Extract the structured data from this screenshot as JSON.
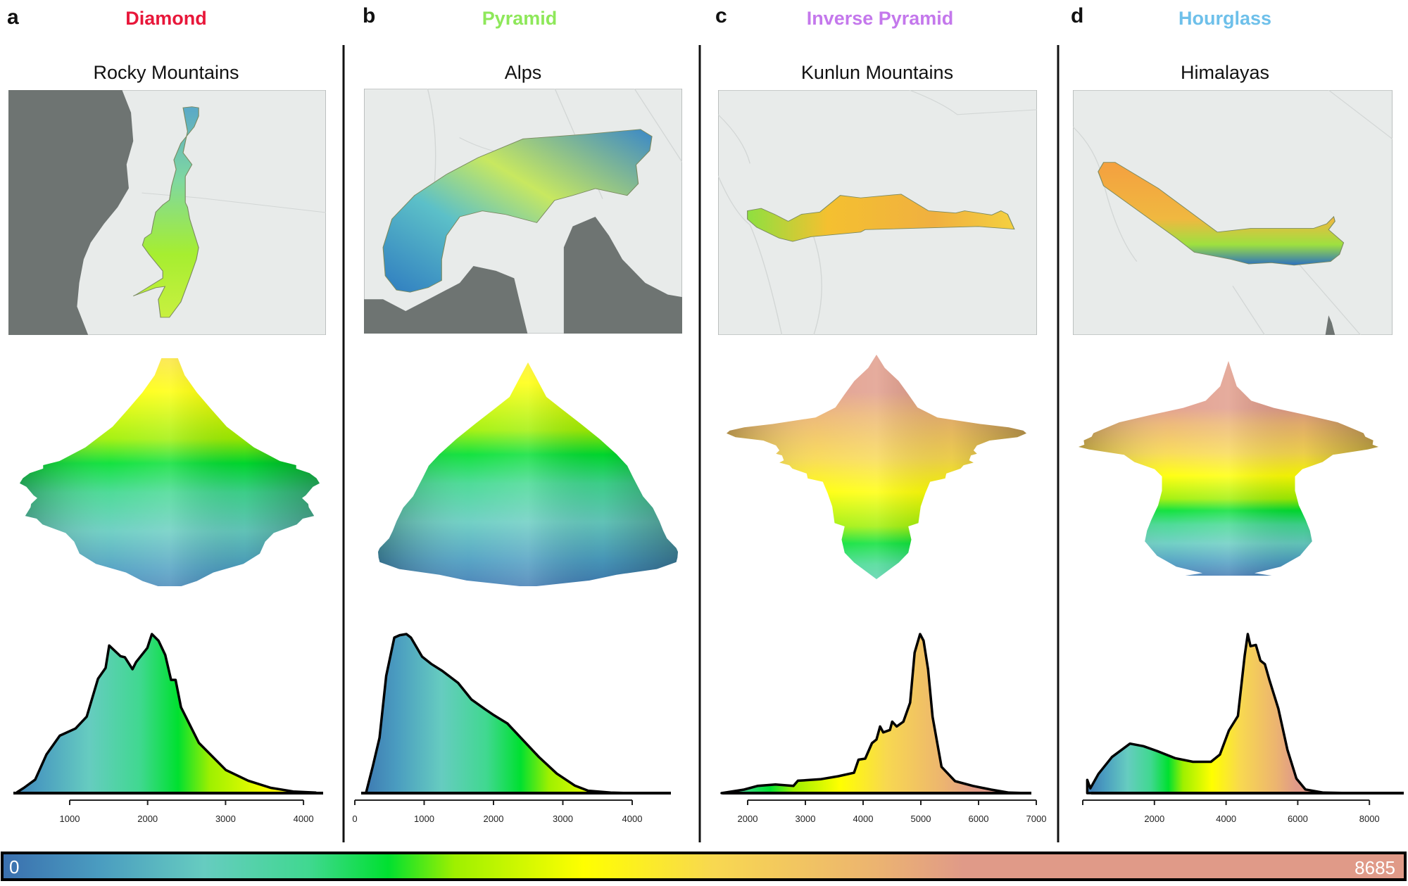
{
  "panels": [
    {
      "letter": "a",
      "shape": "Diamond",
      "shape_color": "#e8173a",
      "region": "Rocky Mountains"
    },
    {
      "letter": "b",
      "shape": "Pyramid",
      "shape_color": "#8ee85a",
      "region": "Alps"
    },
    {
      "letter": "c",
      "shape": "Inverse Pyramid",
      "shape_color": "#c478ec",
      "region": "Kunlun Mountains"
    },
    {
      "letter": "d",
      "shape": "Hourglass",
      "shape_color": "#6ec0ea",
      "region": "Himalayas"
    }
  ],
  "colorbar": {
    "min_label": "0",
    "max_label": "8685",
    "stops": [
      {
        "value": 0,
        "color": "#3a6fae"
      },
      {
        "value": 600,
        "color": "#4a9cc0"
      },
      {
        "value": 1250,
        "color": "#66ccc0"
      },
      {
        "value": 1900,
        "color": "#40d890"
      },
      {
        "value": 2390,
        "color": "#00e030"
      },
      {
        "value": 2800,
        "color": "#9ef000"
      },
      {
        "value": 3600,
        "color": "#ffff00"
      },
      {
        "value": 4400,
        "color": "#f8d850"
      },
      {
        "value": 5400,
        "color": "#ecb470"
      },
      {
        "value": 5950,
        "color": "#e09a88"
      },
      {
        "value": 8685,
        "color": "#e09a88"
      }
    ]
  },
  "map_colors": {
    "land": "#6e7472",
    "background": "#e8ebea",
    "border": "#b8bcbb"
  },
  "chart_data": [
    {
      "type": "area",
      "title": "Rocky Mountains",
      "xticks": [
        1000,
        2000,
        3000,
        4000
      ],
      "x": [
        326,
        413,
        557,
        701,
        873,
        1075,
        1219,
        1363,
        1461,
        1507,
        1651,
        1708,
        1806,
        1852,
        1996,
        2054,
        2140,
        2226,
        2301,
        2359,
        2428,
        2658,
        3004,
        3292,
        3580,
        3868,
        4155
      ],
      "y": [
        0.006,
        0.033,
        0.085,
        0.242,
        0.361,
        0.406,
        0.481,
        0.719,
        0.787,
        0.928,
        0.861,
        0.854,
        0.779,
        0.824,
        0.913,
        1,
        0.958,
        0.869,
        0.712,
        0.712,
        0.54,
        0.316,
        0.145,
        0.078,
        0.033,
        0.01,
        0.003
      ],
      "grid": false
    },
    {
      "type": "area",
      "title": "Alps",
      "xticks": [
        0,
        1000,
        2000,
        3000,
        4000
      ],
      "x": [
        162,
        259,
        356,
        453,
        570,
        647,
        744,
        809,
        971,
        1100,
        1262,
        1489,
        1683,
        1877,
        2006,
        2200,
        2395,
        2653,
        2912,
        3171,
        3365,
        3689,
        3948
      ],
      "y": [
        0.003,
        0.168,
        0.348,
        0.738,
        0.978,
        0.993,
        1,
        0.978,
        0.858,
        0.813,
        0.768,
        0.693,
        0.588,
        0.528,
        0.49,
        0.438,
        0.348,
        0.228,
        0.123,
        0.048,
        0.015,
        0.003,
        0
      ],
      "grid": false
    },
    {
      "type": "area",
      "title": "Kunlun Mountains",
      "xticks": [
        2000,
        3000,
        4000,
        5000,
        6000,
        7000
      ],
      "x": [
        1549,
        1938,
        2171,
        2482,
        2793,
        2871,
        3260,
        3571,
        3843,
        3921,
        4037,
        4154,
        4232,
        4294,
        4349,
        4465,
        4504,
        4582,
        4698,
        4815,
        4893,
        4986,
        5048,
        5126,
        5204,
        5359,
        5593,
        5904,
        6215,
        6526,
        6837
      ],
      "y": [
        0,
        0.022,
        0.045,
        0.054,
        0.045,
        0.078,
        0.087,
        0.106,
        0.128,
        0.21,
        0.217,
        0.314,
        0.337,
        0.419,
        0.382,
        0.397,
        0.449,
        0.419,
        0.449,
        0.569,
        0.883,
        1,
        0.958,
        0.778,
        0.479,
        0.165,
        0.075,
        0.045,
        0.022,
        0.003,
        0
      ],
      "grid": false
    },
    {
      "type": "area",
      "title": "Himalayas",
      "xticks": [
        2000,
        4000,
        6000,
        8000
      ],
      "x": [
        126,
        213,
        439,
        816,
        1318,
        1694,
        2071,
        2573,
        3075,
        3577,
        3828,
        4079,
        4330,
        4518,
        4606,
        4681,
        4832,
        4958,
        5083,
        5209,
        5460,
        5711,
        5962,
        6213,
        6715,
        7593
      ],
      "y": [
        0.083,
        0.03,
        0.121,
        0.227,
        0.311,
        0.295,
        0.265,
        0.22,
        0.197,
        0.197,
        0.242,
        0.394,
        0.485,
        0.864,
        1,
        0.924,
        0.932,
        0.833,
        0.811,
        0.712,
        0.53,
        0.273,
        0.091,
        0.023,
        0.003,
        0
      ],
      "grid": false
    }
  ]
}
